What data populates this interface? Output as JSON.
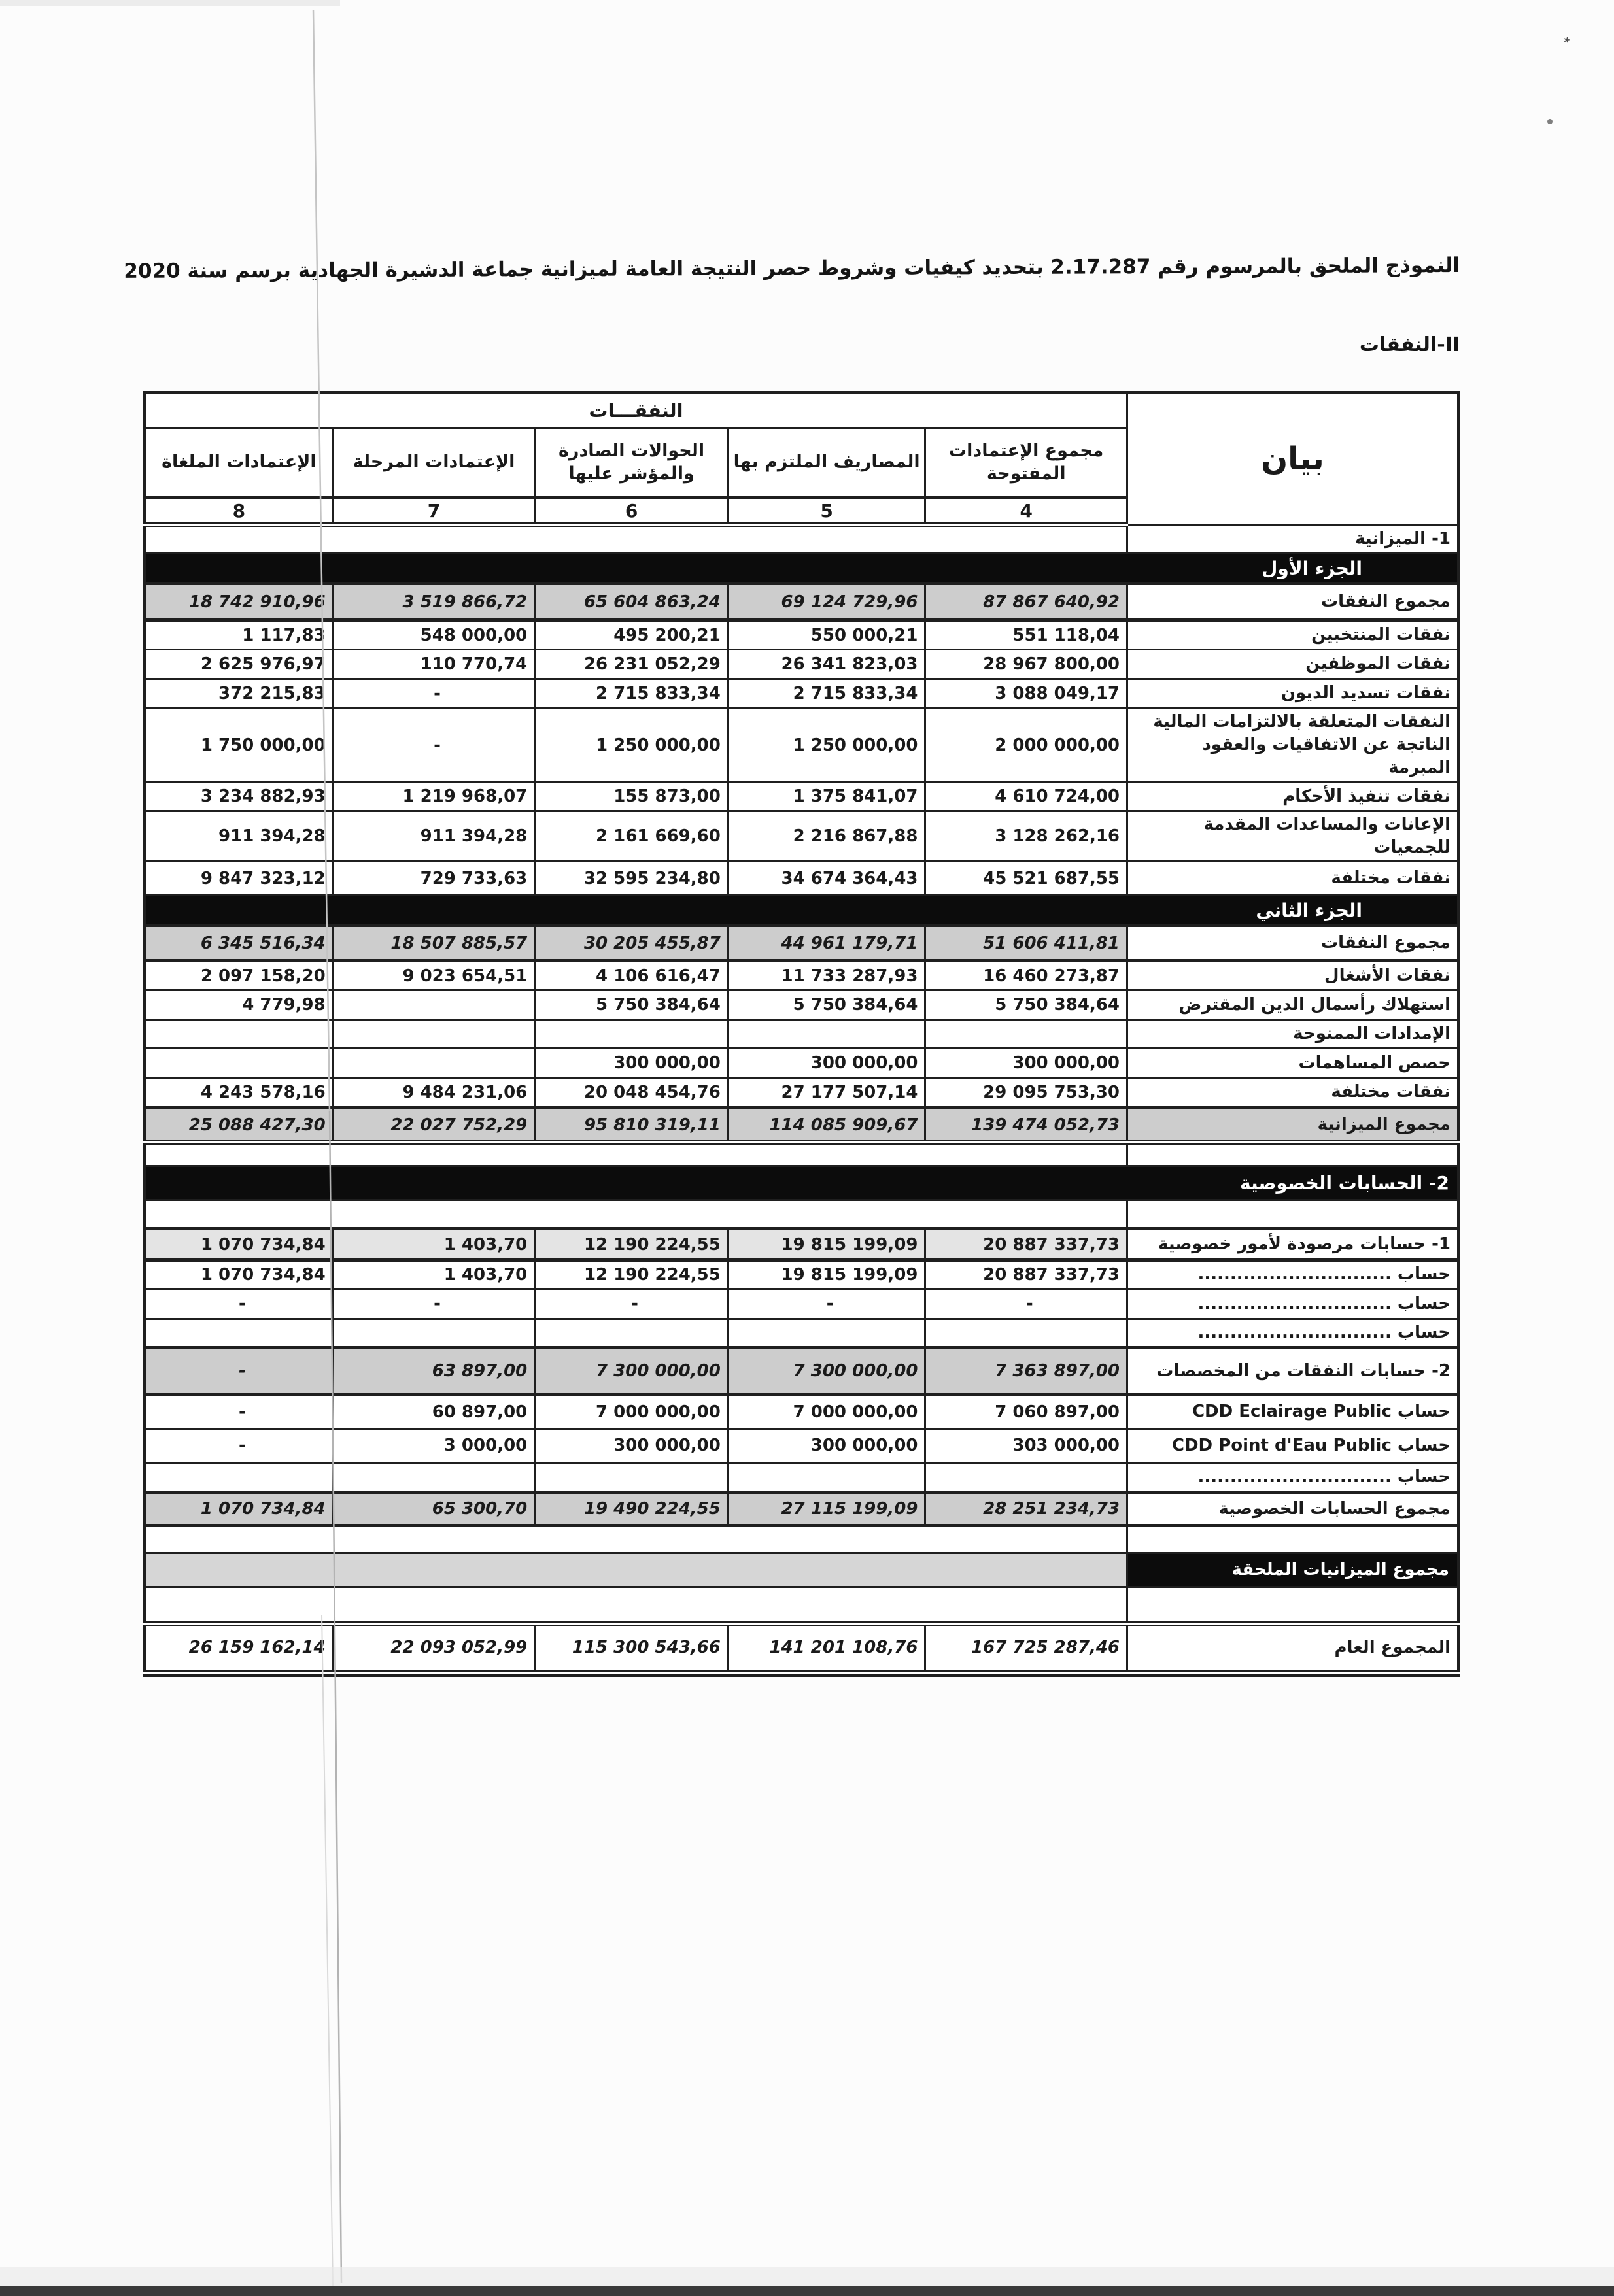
{
  "page": {
    "title": "النموذج الملحق بالمرسوم رقم 2.17.287 بتحديد كيفيات وشروط حصر النتيجة العامة لميزانية جماعة الدشيرة الجهادية برسم سنة 2020",
    "section_label": "II-النفقات"
  },
  "table": {
    "bayan_header": "بيان",
    "group_header": "النفقـــات",
    "columns": [
      {
        "label": "مجموع الإعتمادات المفتوحة",
        "num": "4"
      },
      {
        "label": "المصاريف الملتزم بها",
        "num": "5"
      },
      {
        "label": "الحوالات الصادرة والمؤشر عليها",
        "num": "6"
      },
      {
        "label": "الإعتمادات المرحلة",
        "num": "7"
      },
      {
        "label": "الإعتمادات الملغاة",
        "num": "8"
      }
    ],
    "rows": [
      {
        "type": "section",
        "label": "1- الميزانية"
      },
      {
        "type": "band",
        "label": "الجزء الأول",
        "style": "part"
      },
      {
        "type": "total",
        "label": "مجموع النفقات",
        "values": [
          "87 867 640,92",
          "69 124 729,96",
          "65 604 863,24",
          "3 519 866,72",
          "18 742 910,96"
        ]
      },
      {
        "type": "data",
        "label": "نفقات المنتخبين",
        "values": [
          "551 118,04",
          "550 000,21",
          "495 200,21",
          "548 000,00",
          "1 117,83"
        ]
      },
      {
        "type": "data",
        "label": "نفقات الموظفين",
        "values": [
          "28 967 800,00",
          "26 341 823,03",
          "26 231 052,29",
          "110 770,74",
          "2 625 976,97"
        ]
      },
      {
        "type": "data",
        "label": "نفقات تسديد الديون",
        "values": [
          "3 088 049,17",
          "2 715 833,34",
          "2 715 833,34",
          "-",
          "372 215,83"
        ]
      },
      {
        "type": "data",
        "label": "النفقات المتعلقة بالالتزامات المالية الناتجة عن الاتفاقيات والعقود المبرمة",
        "values": [
          "2 000 000,00",
          "1 250 000,00",
          "1 250 000,00",
          "-",
          "1 750 000,00"
        ]
      },
      {
        "type": "data",
        "label": "نفقات تنفيذ الأحكام",
        "values": [
          "4 610 724,00",
          "1 375 841,07",
          "155 873,00",
          "1 219 968,07",
          "3 234 882,93"
        ]
      },
      {
        "type": "data",
        "label": "الإعانات والمساعدات المقدمة للجمعيات",
        "values": [
          "3 128 262,16",
          "2 216 867,88",
          "2 161 669,60",
          "911 394,28",
          "911 394,28"
        ]
      },
      {
        "type": "data",
        "label": "نفقات مختلفة",
        "values": [
          "45 521 687,55",
          "34 674 364,43",
          "32 595 234,80",
          "729 733,63",
          "9 847 323,12"
        ]
      },
      {
        "type": "band",
        "label": "الجزء الثاني",
        "style": "part"
      },
      {
        "type": "total",
        "label": "مجموع النفقات",
        "values": [
          "51 606 411,81",
          "44 961 179,71",
          "30 205 455,87",
          "18 507 885,57",
          "6 345 516,34"
        ]
      },
      {
        "type": "data",
        "label": "نفقات الأشغال",
        "values": [
          "16 460 273,87",
          "11 733 287,93",
          "4 106 616,47",
          "9 023 654,51",
          "2 097 158,20"
        ]
      },
      {
        "type": "data",
        "label": "استهلاك رأسمال الدين المقترض",
        "values": [
          "5 750 384,64",
          "5 750 384,64",
          "5 750 384,64",
          "",
          "4 779,98"
        ]
      },
      {
        "type": "data",
        "label": "الإمدادات الممنوحة",
        "values": [
          "",
          "",
          "",
          "",
          ""
        ]
      },
      {
        "type": "data",
        "label": "حصص المساهمات",
        "values": [
          "300 000,00",
          "300 000,00",
          "300 000,00",
          "",
          ""
        ]
      },
      {
        "type": "data",
        "label": "نفقات مختلفة",
        "values": [
          "29 095 753,30",
          "27 177 507,14",
          "20 048 454,76",
          "9 484 231,06",
          "4 243 578,16"
        ]
      },
      {
        "type": "total-full",
        "label": "مجموع الميزانية",
        "values": [
          "139 474 052,73",
          "114 085 909,67",
          "95 810 319,11",
          "22 027 752,29",
          "25 088 427,30"
        ]
      },
      {
        "type": "spacer",
        "label": ""
      },
      {
        "type": "band",
        "label": "2- الحسابات الخصوصية",
        "style": "flush"
      },
      {
        "type": "spacer",
        "label": ""
      },
      {
        "type": "total-light",
        "label": "1- حسابات مرصودة لأمور خصوصية",
        "values": [
          "20 887 337,73",
          "19 815 199,09",
          "12 190 224,55",
          "1 403,70",
          "1 070 734,84"
        ]
      },
      {
        "type": "data",
        "label": "حساب ..............................",
        "values": [
          "20 887 337,73",
          "19 815 199,09",
          "12 190 224,55",
          "1 403,70",
          "1 070 734,84"
        ]
      },
      {
        "type": "data",
        "label": "حساب ..............................",
        "values": [
          "-",
          "-",
          "-",
          "-",
          "-"
        ]
      },
      {
        "type": "data",
        "label": "حساب ..............................",
        "values": [
          "",
          "",
          "",
          "",
          ""
        ]
      },
      {
        "type": "total",
        "label": "2- حسابات النفقات من المخصصات",
        "values": [
          "7 363 897,00",
          "7 300 000,00",
          "7 300 000,00",
          "63 897,00",
          "-"
        ]
      },
      {
        "type": "data",
        "label": "حساب CDD Eclairage Public",
        "values": [
          "7 060 897,00",
          "7 000 000,00",
          "7 000 000,00",
          "60 897,00",
          "-"
        ]
      },
      {
        "type": "data",
        "label": "حساب CDD Point d'Eau Public",
        "values": [
          "303 000,00",
          "300 000,00",
          "300 000,00",
          "3 000,00",
          "-"
        ]
      },
      {
        "type": "data",
        "label": "حساب ..............................",
        "values": [
          "",
          "",
          "",
          "",
          ""
        ]
      },
      {
        "type": "total",
        "label": "مجموع الحسابات الخصوصية",
        "values": [
          "28 251 234,73",
          "27 115 199,09",
          "19 490 224,55",
          "65 300,70",
          "1 070 734,84"
        ]
      },
      {
        "type": "spacer",
        "label": ""
      },
      {
        "type": "band-total",
        "label": "مجموع الميزانيات الملحقة"
      },
      {
        "type": "spacer",
        "label": ""
      },
      {
        "type": "grand",
        "label": "المجموع العام",
        "values": [
          "167 725 287,46",
          "141 201 108,76",
          "115 300 543,66",
          "22 093 052,99",
          "26 159 162,14"
        ]
      }
    ]
  },
  "colors": {
    "border": "#1f1f1f",
    "band_bg": "#0c0c0c",
    "band_text": "#ffffff",
    "total_bg": "#cdcdcd",
    "light_total_bg": "#e4e4e4",
    "annex_bg": "#d6d6d6"
  }
}
